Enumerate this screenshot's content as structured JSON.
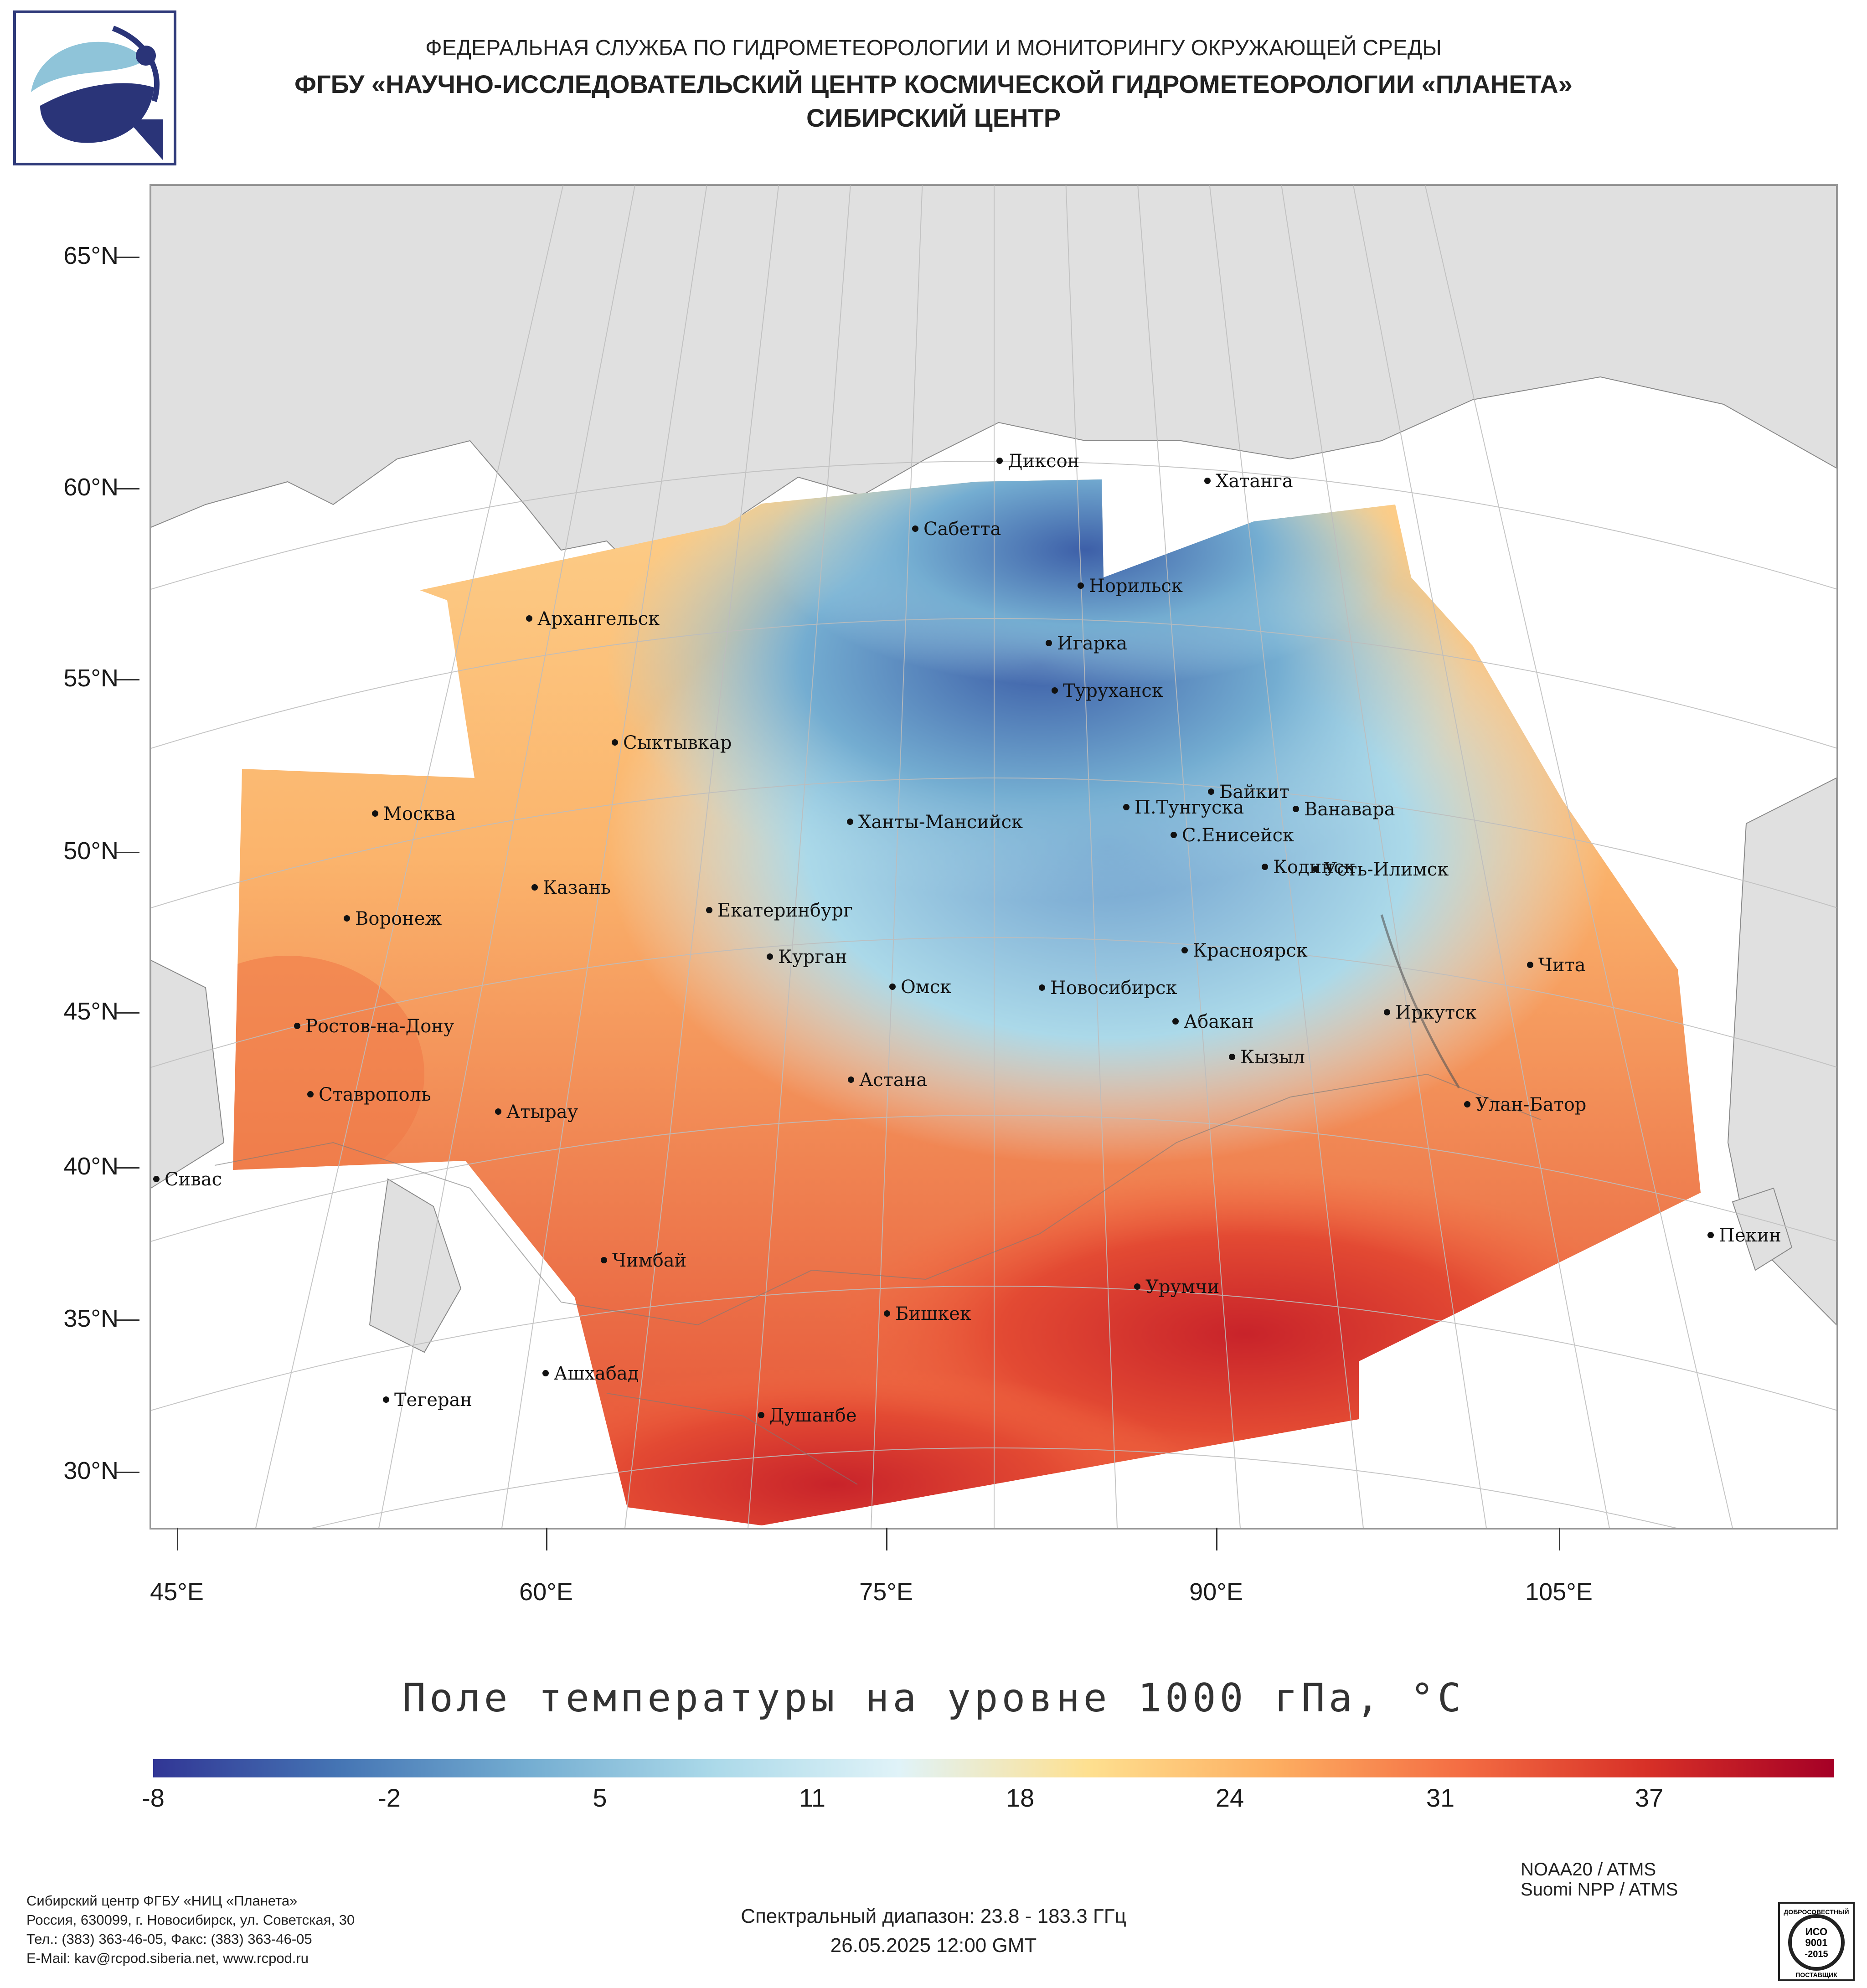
{
  "header": {
    "line1": "ФЕДЕРАЛЬНАЯ СЛУЖБА ПО ГИДРОМЕТЕОРОЛОГИИ И МОНИТОРИНГУ ОКРУЖАЮЩЕЙ СРЕДЫ",
    "line2": "ФГБУ «НАУЧНО-ИССЛЕДОВАТЕЛЬСКИЙ ЦЕНТР КОСМИЧЕСКОЙ ГИДРОМЕТЕОРОЛОГИИ «ПЛАНЕТА»",
    "line3": "СИБИРСКИЙ ЦЕНТР"
  },
  "map": {
    "lat_labels": [
      "65°N",
      "60°N",
      "55°N",
      "50°N",
      "45°N",
      "40°N",
      "35°N",
      "30°N"
    ],
    "lon_labels": [
      "45°E",
      "60°E",
      "75°E",
      "90°E",
      "105°E"
    ],
    "cities": [
      {
        "name": "Диксон"
      },
      {
        "name": "Хатанга"
      },
      {
        "name": "Сабетта"
      },
      {
        "name": "Норильск"
      },
      {
        "name": "Архангельск"
      },
      {
        "name": "Игарка"
      },
      {
        "name": "Туруханск"
      },
      {
        "name": "Сыктывкар"
      },
      {
        "name": "Байкит"
      },
      {
        "name": "П.Тунгуска"
      },
      {
        "name": "Ванавара"
      },
      {
        "name": "Москва"
      },
      {
        "name": "Ханты-Мансийск"
      },
      {
        "name": "С.Енисейск"
      },
      {
        "name": "Кодинск"
      },
      {
        "name": "Усть-Илимск"
      },
      {
        "name": "Казань"
      },
      {
        "name": "Екатеринбург"
      },
      {
        "name": "Воронеж"
      },
      {
        "name": "Курган"
      },
      {
        "name": "Красноярск"
      },
      {
        "name": "Чита"
      },
      {
        "name": "Омск"
      },
      {
        "name": "Новосибирск"
      },
      {
        "name": "Иркутск"
      },
      {
        "name": "Абакан"
      },
      {
        "name": "Ростов-на-Дону"
      },
      {
        "name": "Кызыл"
      },
      {
        "name": "Ставрополь"
      },
      {
        "name": "Астана"
      },
      {
        "name": "Улан-Батор"
      },
      {
        "name": "Атырау"
      },
      {
        "name": "Сивас"
      },
      {
        "name": "Пекин"
      },
      {
        "name": "Чимбай"
      },
      {
        "name": "Урумчи"
      },
      {
        "name": "Бишкек"
      },
      {
        "name": "Ашхабад"
      },
      {
        "name": "Тегеран"
      },
      {
        "name": "Душанбе"
      }
    ]
  },
  "title": "Поле температуры на уровне 1000 гПа, °C",
  "colorbar": {
    "labels": [
      "-8",
      "-2",
      "5",
      "11",
      "18",
      "24",
      "31",
      "37"
    ],
    "colors": [
      "#313695",
      "#4575b4",
      "#74add1",
      "#abd9e9",
      "#e0f3f8",
      "#fee090",
      "#fdae61",
      "#f46d43",
      "#d73027",
      "#a50026"
    ]
  },
  "footer": {
    "org_lines": [
      "Сибирский центр ФГБУ «НИЦ «Планета»",
      "Россия, 630099, г. Новосибирск, ул. Советская, 30",
      "Тел.: (383) 363-46-05, Факс: (383) 363-46-05",
      "E-Mail: kav@rcpod.siberia.net, www.rcpod.ru"
    ],
    "spectral": "Спектральный диапазон: 23.8 - 183.3 ГГц",
    "datetime": "26.05.2025 12:00 GMT",
    "sat1": "NOAA20 / ATMS",
    "sat2": "Suomi NPP / ATMS",
    "iso_badge": {
      "top": "ДОБРОСОВЕСТНЫЙ",
      "mid1": "ИСО",
      "mid2": "9001",
      "mid3": "-2015",
      "bottom": "ПОСТАВЩИК"
    }
  }
}
